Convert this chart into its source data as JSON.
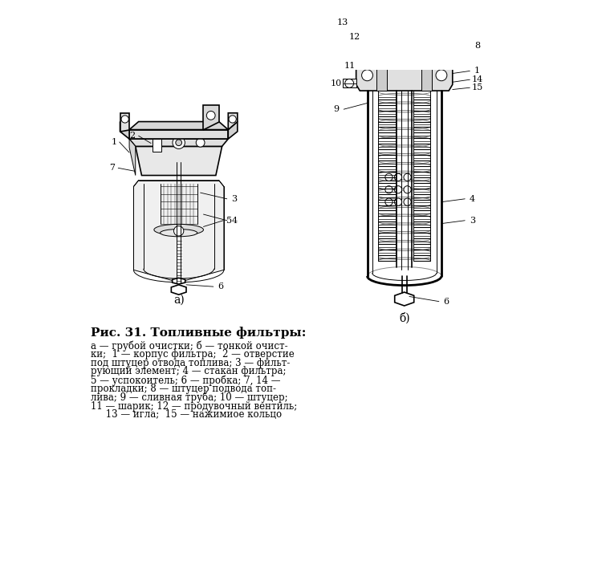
{
  "bg_color": "#ffffff",
  "title": "Рис. 31. Топливные фильтры:",
  "caption_lines": [
    "а — грубой очистки; б — тонкой очист-",
    "ки;  1 — корпус фильтра;  2 — отверстие",
    "под штуцер отвода топлива; 3 — фильт-",
    "рующий элемент; 4 — стакан фильтра;",
    "5 — успокоитель; 6 — пробка; 7, 14 —",
    "прокладки; 8 — штуцер подвода топ-",
    "лива; 9 — сливная труба; 10 — штуцер;",
    "11 — шарик; 12 — продувочный вентиль;",
    "     13 — игла;  15 — нажимиое кольцо"
  ],
  "label_a": "а)",
  "label_b": "б)"
}
